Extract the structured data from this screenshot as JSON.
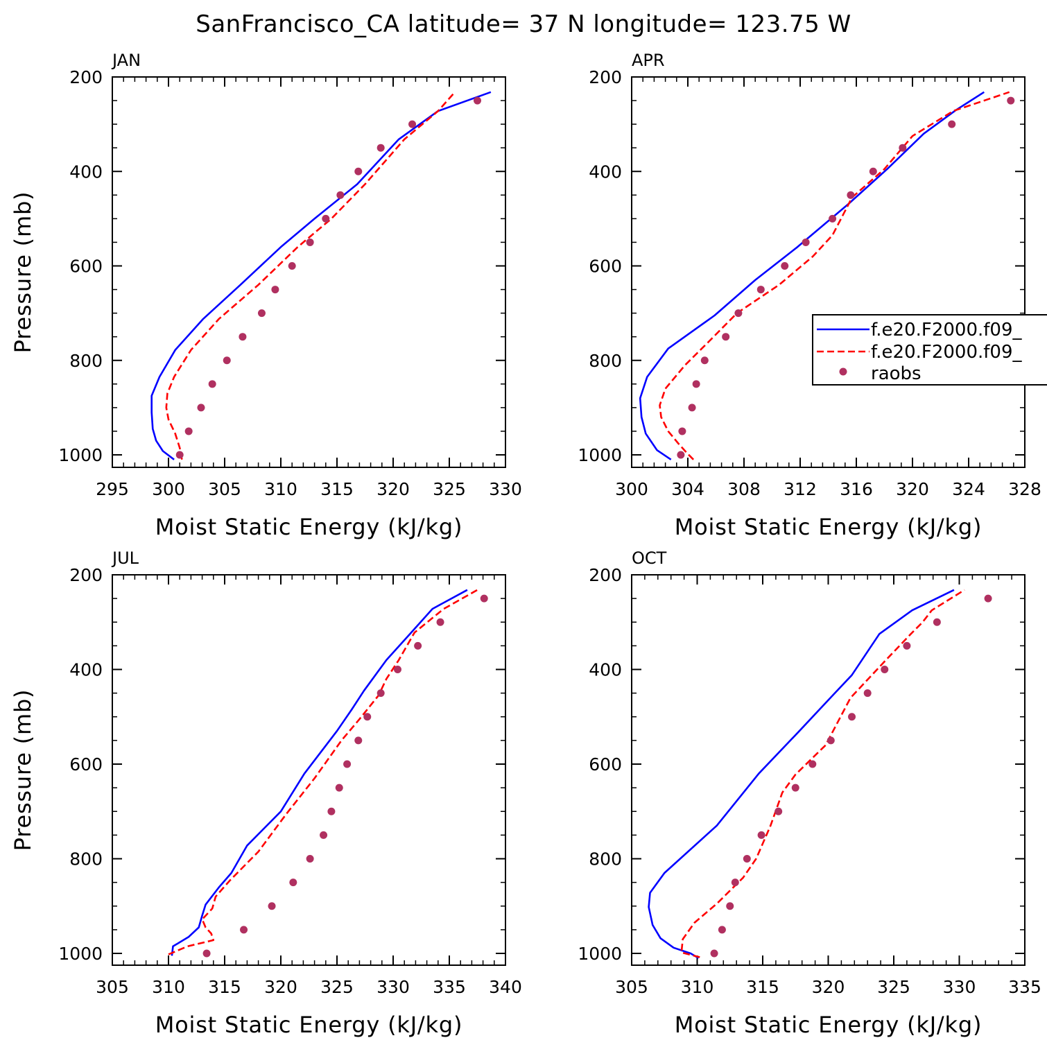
{
  "title": "SanFrancisco_CA  latitude= 37 N longitude= 123.75 W",
  "colors": {
    "model_a": "#0000ff",
    "model_b": "#ff0000",
    "raobs": "#b03060"
  },
  "legend": {
    "placement": "right-middle (APR panel)",
    "entries": [
      {
        "label": "f.e20.F2000.f09_",
        "style": "solid",
        "color": "#0000ff"
      },
      {
        "label": "f.e20.F2000.f09_",
        "style": "dashed",
        "color": "#ff0000"
      },
      {
        "label": "raobs",
        "style": "marker",
        "color": "#b03060"
      }
    ]
  },
  "chart_data": [
    {
      "type": "line",
      "panel_title": "JAN",
      "xlabel": "Moist Static Energy (kJ/kg)",
      "ylabel": "Pressure (mb)",
      "xlim": [
        295,
        330
      ],
      "xticks": [
        295,
        300,
        305,
        310,
        315,
        320,
        325,
        330
      ],
      "ylim": [
        200,
        1000
      ],
      "yticks": [
        200,
        400,
        600,
        800,
        1000
      ],
      "series": [
        {
          "style": "solid",
          "color": "#0000ff",
          "points": [
            [
              300.5,
              1010
            ],
            [
              299.5,
              992
            ],
            [
              298.9,
              970
            ],
            [
              298.6,
              945
            ],
            [
              298.5,
              910
            ],
            [
              298.5,
              875
            ],
            [
              299.2,
              835
            ],
            [
              300.6,
              778
            ],
            [
              303.1,
              712
            ],
            [
              306.4,
              640
            ],
            [
              310.0,
              560
            ],
            [
              313.0,
              500
            ],
            [
              316.8,
              427
            ],
            [
              320.5,
              332
            ],
            [
              324.0,
              272
            ],
            [
              328.7,
              232
            ]
          ]
        },
        {
          "style": "dashed",
          "color": "#ff0000",
          "points": [
            [
              301.2,
              1010
            ],
            [
              301.0,
              985
            ],
            [
              300.6,
              955
            ],
            [
              300.0,
              925
            ],
            [
              299.8,
              900
            ],
            [
              299.9,
              870
            ],
            [
              300.5,
              835
            ],
            [
              302.0,
              778
            ],
            [
              304.5,
              712
            ],
            [
              308.0,
              640
            ],
            [
              311.5,
              560
            ],
            [
              314.5,
              500
            ],
            [
              317.5,
              427
            ],
            [
              321.0,
              332
            ],
            [
              324.0,
              272
            ],
            [
              325.5,
              232
            ]
          ]
        },
        {
          "style": "marker",
          "color": "#b03060",
          "points": [
            [
              301.0,
              1000
            ],
            [
              301.8,
              950
            ],
            [
              302.9,
              900
            ],
            [
              303.9,
              850
            ],
            [
              305.2,
              800
            ],
            [
              306.6,
              750
            ],
            [
              308.3,
              700
            ],
            [
              309.5,
              650
            ],
            [
              311.0,
              600
            ],
            [
              312.6,
              550
            ],
            [
              314.0,
              500
            ],
            [
              315.3,
              450
            ],
            [
              316.9,
              400
            ],
            [
              318.9,
              350
            ],
            [
              321.7,
              300
            ],
            [
              327.5,
              250
            ]
          ]
        }
      ]
    },
    {
      "type": "line",
      "panel_title": "APR",
      "xlabel": "Moist Static Energy (kJ/kg)",
      "ylabel": "",
      "xlim": [
        300,
        328
      ],
      "xticks": [
        300,
        304,
        308,
        312,
        316,
        320,
        324,
        328
      ],
      "ylim": [
        200,
        1000
      ],
      "yticks": [
        200,
        400,
        600,
        800,
        1000
      ],
      "series": [
        {
          "style": "solid",
          "color": "#0000ff",
          "points": [
            [
              302.8,
              1010
            ],
            [
              301.8,
              990
            ],
            [
              301.0,
              955
            ],
            [
              300.7,
              920
            ],
            [
              300.6,
              880
            ],
            [
              301.1,
              835
            ],
            [
              302.6,
              775
            ],
            [
              305.9,
              705
            ],
            [
              308.8,
              630
            ],
            [
              311.8,
              560
            ],
            [
              315.4,
              470
            ],
            [
              318.2,
              395
            ],
            [
              320.8,
              320
            ],
            [
              323.1,
              270
            ],
            [
              325.1,
              232
            ]
          ]
        },
        {
          "style": "dashed",
          "color": "#ff0000",
          "points": [
            [
              304.4,
              1010
            ],
            [
              303.9,
              995
            ],
            [
              303.3,
              975
            ],
            [
              302.6,
              950
            ],
            [
              302.1,
              920
            ],
            [
              302.0,
              895
            ],
            [
              302.4,
              860
            ],
            [
              303.8,
              810
            ],
            [
              305.5,
              760
            ],
            [
              307.5,
              700
            ],
            [
              310.5,
              640
            ],
            [
              312.9,
              580
            ],
            [
              314.3,
              535
            ],
            [
              315.7,
              455
            ],
            [
              318.0,
              395
            ],
            [
              320.0,
              325
            ],
            [
              322.9,
              272
            ],
            [
              326.9,
              232
            ]
          ]
        },
        {
          "style": "marker",
          "color": "#b03060",
          "points": [
            [
              303.5,
              1000
            ],
            [
              303.6,
              950
            ],
            [
              304.3,
              900
            ],
            [
              304.6,
              850
            ],
            [
              305.2,
              800
            ],
            [
              306.7,
              750
            ],
            [
              307.6,
              700
            ],
            [
              309.2,
              650
            ],
            [
              310.9,
              600
            ],
            [
              312.4,
              550
            ],
            [
              314.3,
              500
            ],
            [
              315.6,
              450
            ],
            [
              317.2,
              400
            ],
            [
              319.3,
              350
            ],
            [
              322.8,
              300
            ],
            [
              327.0,
              250
            ]
          ]
        }
      ]
    },
    {
      "type": "line",
      "panel_title": "JUL",
      "xlabel": "Moist Static Energy (kJ/kg)",
      "ylabel": "Pressure (mb)",
      "xlim": [
        305,
        340
      ],
      "xticks": [
        305,
        310,
        315,
        320,
        325,
        330,
        335,
        340
      ],
      "ylim": [
        200,
        1000
      ],
      "yticks": [
        200,
        400,
        600,
        800,
        1000
      ],
      "series": [
        {
          "style": "solid",
          "color": "#0000ff",
          "points": [
            [
              310.3,
              1005
            ],
            [
              310.4,
              985
            ],
            [
              311.8,
              965
            ],
            [
              312.7,
              945
            ],
            [
              313.0,
              920
            ],
            [
              313.3,
              897
            ],
            [
              314.5,
              860
            ],
            [
              315.6,
              830
            ],
            [
              317.0,
              772
            ],
            [
              320.0,
              700
            ],
            [
              322.1,
              620
            ],
            [
              325.0,
              530
            ],
            [
              326.3,
              485
            ],
            [
              327.4,
              445
            ],
            [
              329.4,
              380
            ],
            [
              331.5,
              325
            ],
            [
              333.5,
              272
            ],
            [
              336.6,
              232
            ]
          ]
        },
        {
          "style": "dashed",
          "color": "#ff0000",
          "points": [
            [
              310.0,
              1002
            ],
            [
              311.7,
              985
            ],
            [
              314.0,
              972
            ],
            [
              313.8,
              958
            ],
            [
              313.3,
              945
            ],
            [
              313.0,
              928
            ],
            [
              313.9,
              905
            ],
            [
              314.2,
              880
            ],
            [
              315.5,
              845
            ],
            [
              318.0,
              785
            ],
            [
              320.5,
              705
            ],
            [
              323.0,
              630
            ],
            [
              325.4,
              550
            ],
            [
              327.0,
              505
            ],
            [
              328.7,
              455
            ],
            [
              329.4,
              420
            ],
            [
              330.5,
              380
            ],
            [
              331.9,
              322
            ],
            [
              334.5,
              272
            ],
            [
              337.5,
              232
            ]
          ]
        },
        {
          "style": "marker",
          "color": "#b03060",
          "points": [
            [
              313.4,
              1000
            ],
            [
              316.7,
              950
            ],
            [
              319.2,
              900
            ],
            [
              321.1,
              850
            ],
            [
              322.6,
              800
            ],
            [
              323.8,
              750
            ],
            [
              324.5,
              700
            ],
            [
              325.2,
              650
            ],
            [
              325.9,
              600
            ],
            [
              326.9,
              550
            ],
            [
              327.7,
              500
            ],
            [
              328.9,
              450
            ],
            [
              330.4,
              400
            ],
            [
              332.2,
              350
            ],
            [
              334.2,
              300
            ],
            [
              338.1,
              250
            ]
          ]
        }
      ]
    },
    {
      "type": "line",
      "panel_title": "OCT",
      "xlabel": "Moist Static Energy (kJ/kg)",
      "ylabel": "",
      "xlim": [
        305,
        335
      ],
      "xticks": [
        305,
        310,
        315,
        320,
        325,
        330,
        335
      ],
      "ylim": [
        200,
        1000
      ],
      "yticks": [
        200,
        400,
        600,
        800,
        1000
      ],
      "series": [
        {
          "style": "solid",
          "color": "#0000ff",
          "points": [
            [
              310.1,
              1010
            ],
            [
              309.5,
              1000
            ],
            [
              308.2,
              988
            ],
            [
              307.2,
              968
            ],
            [
              306.6,
              940
            ],
            [
              306.3,
              902
            ],
            [
              306.4,
              872
            ],
            [
              307.5,
              830
            ],
            [
              311.5,
              730
            ],
            [
              314.7,
              620
            ],
            [
              317.8,
              530
            ],
            [
              320.5,
              450
            ],
            [
              321.8,
              412
            ],
            [
              323.9,
              325
            ],
            [
              326.4,
              275
            ],
            [
              329.6,
              232
            ]
          ]
        },
        {
          "style": "dashed",
          "color": "#ff0000",
          "points": [
            [
              310.2,
              1008
            ],
            [
              308.8,
              998
            ],
            [
              308.9,
              970
            ],
            [
              309.8,
              935
            ],
            [
              311.5,
              895
            ],
            [
              313.5,
              840
            ],
            [
              314.5,
              800
            ],
            [
              315.6,
              730
            ],
            [
              316.5,
              660
            ],
            [
              317.5,
              622
            ],
            [
              319.8,
              560
            ],
            [
              321.7,
              460
            ],
            [
              324.4,
              380
            ],
            [
              326.3,
              325
            ],
            [
              327.2,
              300
            ],
            [
              327.9,
              275
            ],
            [
              330.4,
              232
            ]
          ]
        },
        {
          "style": "marker",
          "color": "#b03060",
          "points": [
            [
              311.3,
              1000
            ],
            [
              311.9,
              950
            ],
            [
              312.5,
              900
            ],
            [
              312.9,
              850
            ],
            [
              313.8,
              800
            ],
            [
              314.9,
              750
            ],
            [
              316.2,
              700
            ],
            [
              317.5,
              650
            ],
            [
              318.8,
              600
            ],
            [
              320.2,
              550
            ],
            [
              321.8,
              500
            ],
            [
              323.0,
              450
            ],
            [
              324.3,
              400
            ],
            [
              326.0,
              350
            ],
            [
              328.3,
              300
            ],
            [
              332.2,
              250
            ]
          ]
        }
      ]
    }
  ]
}
